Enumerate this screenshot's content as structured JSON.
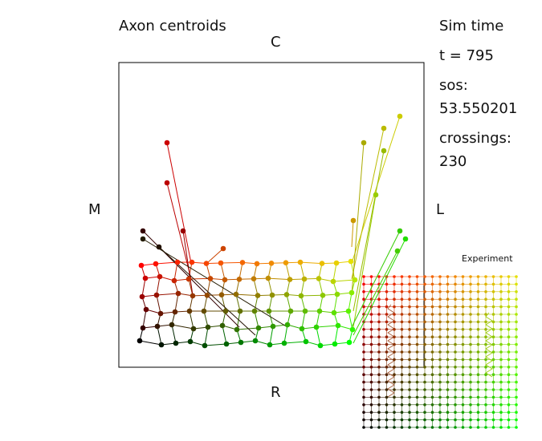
{
  "figure": {
    "title": "Axon centroids",
    "axis_labels": {
      "top": "C",
      "left": "M",
      "right": "L",
      "bottom": "R"
    }
  },
  "info_panel": {
    "sim_time_label": "Sim time",
    "t_label": "t =  795",
    "sos_label": "sos:",
    "sos_value": "53.550201",
    "crossings_label": "crossings:",
    "crossings_value": "230"
  },
  "inset": {
    "title": "Experiment",
    "grid_columns": 21,
    "grid_rows": 21
  },
  "colors": {
    "start": "#000000",
    "red": "#ff0000",
    "green": "#00ff00",
    "yellow": "#e6e000",
    "frame": "#000000"
  }
}
